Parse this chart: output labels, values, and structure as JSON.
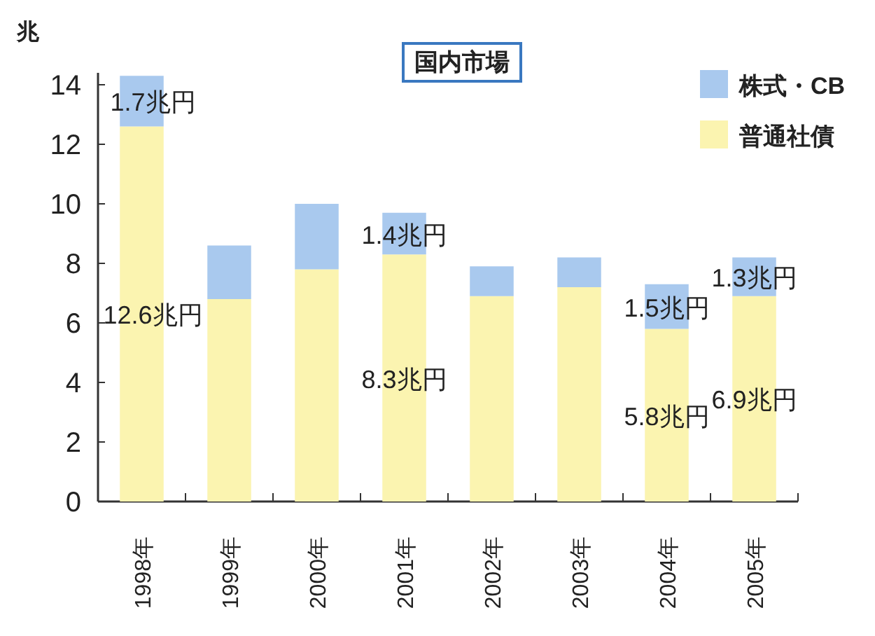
{
  "chart_data": {
    "type": "bar",
    "stacked": true,
    "title": "国内市場",
    "ylabel": "兆",
    "legend": "top right",
    "categories": [
      "1998年",
      "1999年",
      "2000年",
      "2001年",
      "2002年",
      "2003年",
      "2004年",
      "2005年"
    ],
    "ylim": [
      0,
      14.4
    ],
    "yticks": [
      0,
      2,
      4,
      6,
      8,
      10,
      12,
      14
    ],
    "series": [
      {
        "name": "普通社債",
        "color": "#fbf4b0",
        "values": [
          12.6,
          6.8,
          7.8,
          8.3,
          6.9,
          7.2,
          5.8,
          6.9
        ],
        "value_labels": [
          "12.6兆円",
          null,
          null,
          "8.3兆円",
          null,
          null,
          "5.8兆円",
          "6.9兆円"
        ]
      },
      {
        "name": "株式・CB",
        "color": "#a9c9ee",
        "values": [
          1.7,
          1.8,
          2.2,
          1.4,
          1.0,
          1.0,
          1.5,
          1.3
        ],
        "value_labels": [
          "1.7兆円",
          null,
          null,
          "1.4兆円",
          null,
          null,
          "1.5兆円",
          "1.3兆円"
        ]
      }
    ]
  }
}
